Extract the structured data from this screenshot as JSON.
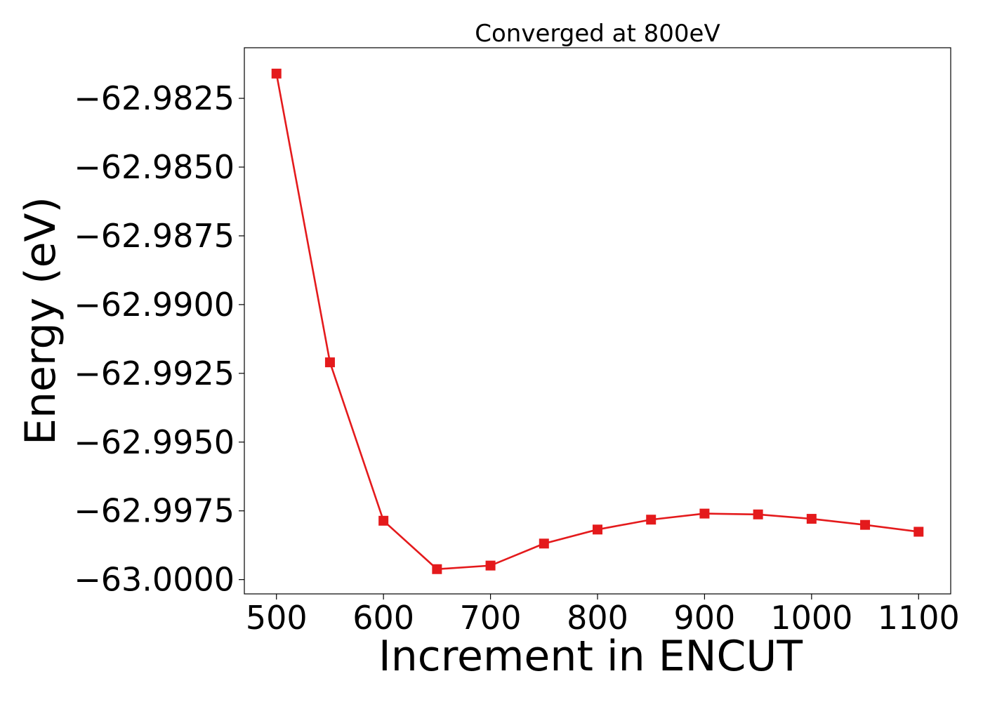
{
  "chart_data": {
    "type": "line",
    "title": "Converged at 800eV",
    "xlabel": "Increment in ENCUT",
    "ylabel": "Energy (eV)",
    "x": [
      500,
      550,
      600,
      650,
      700,
      750,
      800,
      850,
      900,
      950,
      1000,
      1050,
      1100
    ],
    "series": [
      {
        "values": [
          -62.9816,
          -62.9921,
          -62.99786,
          -62.99962,
          -62.99949,
          -62.99869,
          -62.99818,
          -62.99782,
          -62.9976,
          -62.99763,
          -62.99779,
          -62.99801,
          -62.99826
        ],
        "color": "#e41a1c",
        "marker": "square"
      }
    ],
    "xlim": [
      470,
      1130
    ],
    "ylim": [
      -63.00052,
      -62.98066
    ],
    "xticks": [
      500,
      600,
      700,
      800,
      900,
      1000,
      1100
    ],
    "xtick_labels": [
      "500",
      "600",
      "700",
      "800",
      "900",
      "1000",
      "1100"
    ],
    "yticks": [
      -62.9825,
      -62.985,
      -62.9875,
      -62.99,
      -62.9925,
      -62.995,
      -62.9975,
      -63.0
    ],
    "ytick_labels": [
      "−62.9825",
      "−62.9850",
      "−62.9875",
      "−62.9900",
      "−62.9925",
      "−62.9950",
      "−62.9975",
      "−63.0000"
    ],
    "grid": false,
    "legend": "none"
  }
}
